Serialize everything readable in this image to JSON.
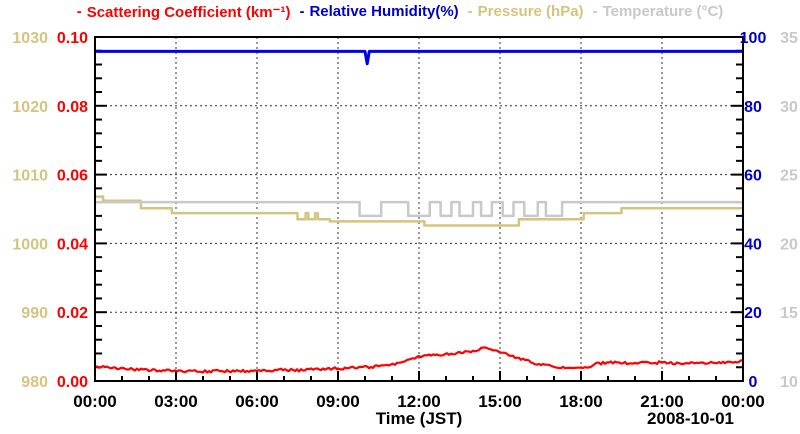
{
  "legend": {
    "items": [
      {
        "marker": "-",
        "label": "Scattering Coefficient (km⁻¹)",
        "color": "#ff0000"
      },
      {
        "marker": "-",
        "label": "Relative Humidity(%)",
        "color": "#0000cd"
      },
      {
        "marker": "-",
        "label": "Pressure (hPa)",
        "color": "#d3c57f"
      },
      {
        "marker": "-",
        "label": "Temperature (°C)",
        "color": "#c9c9c9"
      }
    ]
  },
  "chart_data": {
    "type": "line",
    "title": "",
    "xlabel": "Time (JST)",
    "date_label": "2008-10-01",
    "x_axis": {
      "unit": "hours JST",
      "range": [
        0,
        24
      ],
      "major_tick_hours": 3,
      "minor_tick_hours": 1,
      "tick_labels": [
        "00:00",
        "03:00",
        "06:00",
        "09:00",
        "12:00",
        "15:00",
        "18:00",
        "21:00",
        "00:00"
      ]
    },
    "axes": {
      "scattering": {
        "title": "Scattering Coefficient (km⁻¹)",
        "side": "left-inner",
        "range": [
          0.0,
          0.1
        ],
        "tick_labels": [
          "0.10",
          "0.08",
          "0.06",
          "0.04",
          "0.02",
          "0.00"
        ],
        "text_color": "#ff0000"
      },
      "pressure": {
        "title": "Pressure (hPa)",
        "side": "left-outer",
        "range": [
          980,
          1030
        ],
        "tick_labels": [
          "1030",
          "1020",
          "1010",
          "1000",
          "990",
          "980"
        ],
        "text_color": "#d3c57f"
      },
      "humidity": {
        "title": "Relative Humidity(%)",
        "side": "right-inner",
        "range": [
          0,
          100
        ],
        "tick_labels": [
          "100",
          "80",
          "60",
          "40",
          "20",
          "0"
        ],
        "text_color": "#0000cd"
      },
      "temperature": {
        "title": "Temperature (C)",
        "side": "right-outer",
        "range": [
          10,
          35
        ],
        "tick_labels": [
          "35",
          "30",
          "25",
          "20",
          "15",
          "10"
        ],
        "text_color": "#c9c9c9"
      }
    },
    "grid": {
      "style": "dotted",
      "vertical_at_hours": [
        3,
        6,
        9,
        12,
        15,
        18,
        21
      ],
      "horizontal_at_scattering": [
        0.02,
        0.04,
        0.06,
        0.08
      ]
    },
    "series": [
      {
        "name": "Pressure",
        "axis": "pressure",
        "color": "#d3c57f",
        "style": "step",
        "width": 2.5,
        "points": [
          [
            0,
            1006.8
          ],
          [
            0.3,
            1006.2
          ],
          [
            1.7,
            1005.1
          ],
          [
            2.85,
            1004.4
          ],
          [
            7.5,
            1003.5
          ],
          [
            7.8,
            1004.4
          ],
          [
            7.9,
            1003.5
          ],
          [
            8.15,
            1004.4
          ],
          [
            8.25,
            1003.5
          ],
          [
            8.7,
            1003.2
          ],
          [
            12.2,
            1002.6
          ],
          [
            15.7,
            1003.5
          ],
          [
            18.1,
            1004.4
          ],
          [
            19.5,
            1005.1
          ],
          [
            24,
            1005.1
          ]
        ]
      },
      {
        "name": "Temperature",
        "axis": "temperature",
        "color": "#c9c9c9",
        "style": "step",
        "width": 2.5,
        "points": [
          [
            0,
            23
          ],
          [
            9.8,
            22
          ],
          [
            10.6,
            23
          ],
          [
            11.6,
            22
          ],
          [
            12.4,
            23
          ],
          [
            12.8,
            22
          ],
          [
            13.2,
            23
          ],
          [
            13.5,
            22
          ],
          [
            14.0,
            23
          ],
          [
            14.3,
            22
          ],
          [
            14.7,
            23
          ],
          [
            15.1,
            22
          ],
          [
            15.5,
            23
          ],
          [
            15.9,
            22
          ],
          [
            16.4,
            23
          ],
          [
            16.7,
            22
          ],
          [
            17.3,
            23
          ],
          [
            24,
            23
          ]
        ]
      },
      {
        "name": "Relative Humidity",
        "axis": "humidity",
        "color": "#0000f0",
        "style": "line",
        "width": 3,
        "points": [
          [
            0,
            95.8
          ],
          [
            10.0,
            95.8
          ],
          [
            10.08,
            92.2
          ],
          [
            10.16,
            95.8
          ],
          [
            24,
            95.8
          ]
        ]
      },
      {
        "name": "Scattering Coefficient",
        "axis": "scattering",
        "color": "#ff0000",
        "style": "noisy-line",
        "width": 2.2,
        "points": [
          [
            0,
            0.0042
          ],
          [
            0.5,
            0.004
          ],
          [
            1,
            0.0036
          ],
          [
            1.5,
            0.0033
          ],
          [
            2,
            0.0031
          ],
          [
            3,
            0.0029
          ],
          [
            4,
            0.0028
          ],
          [
            5,
            0.0029
          ],
          [
            6,
            0.003
          ],
          [
            7,
            0.0033
          ],
          [
            7.5,
            0.0031
          ],
          [
            8,
            0.0034
          ],
          [
            9,
            0.0036
          ],
          [
            9.5,
            0.0038
          ],
          [
            10,
            0.004
          ],
          [
            10.5,
            0.0043
          ],
          [
            11,
            0.0048
          ],
          [
            11.5,
            0.0058
          ],
          [
            12,
            0.007
          ],
          [
            12.5,
            0.0075
          ],
          [
            13,
            0.0078
          ],
          [
            13.5,
            0.0082
          ],
          [
            14,
            0.0088
          ],
          [
            14.5,
            0.0096
          ],
          [
            14.8,
            0.0092
          ],
          [
            15,
            0.0086
          ],
          [
            15.5,
            0.0072
          ],
          [
            16,
            0.0058
          ],
          [
            16.5,
            0.0048
          ],
          [
            17,
            0.0041
          ],
          [
            17.5,
            0.0038
          ],
          [
            18,
            0.0037
          ],
          [
            18.3,
            0.004
          ],
          [
            18.6,
            0.005
          ],
          [
            19,
            0.0054
          ],
          [
            19.5,
            0.0052
          ],
          [
            20,
            0.0053
          ],
          [
            20.5,
            0.0052
          ],
          [
            21,
            0.0054
          ],
          [
            21.5,
            0.0052
          ],
          [
            22,
            0.0053
          ],
          [
            22.5,
            0.0054
          ],
          [
            23,
            0.0054
          ],
          [
            23.5,
            0.0055
          ],
          [
            24,
            0.0058
          ]
        ]
      }
    ]
  }
}
